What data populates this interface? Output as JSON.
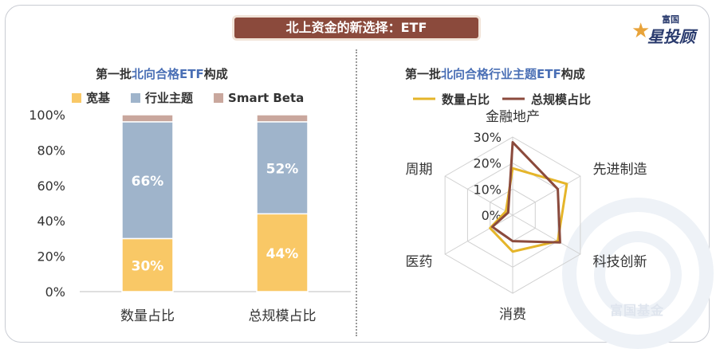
{
  "banner": {
    "title": "北上资金的新选择：ETF"
  },
  "logo": {
    "top": "富国",
    "main": "星投顾",
    "watermark": "富国基金"
  },
  "left": {
    "subtitle_prefix": "第一批",
    "subtitle_highlight": "北向合格ETF",
    "subtitle_suffix": "构成"
  },
  "right": {
    "subtitle_prefix": "第一批",
    "subtitle_highlight": "北向合格行业主题ETF",
    "subtitle_suffix": "构成"
  },
  "chart_data": [
    {
      "type": "bar",
      "stacked": true,
      "title": "第一批北向合格ETF构成",
      "categories": [
        "数量占比",
        "总规模占比"
      ],
      "series": [
        {
          "name": "宽基",
          "color": "#f9c866",
          "values": [
            30,
            44
          ],
          "labels": [
            "30%",
            "44%"
          ]
        },
        {
          "name": "行业主题",
          "color": "#9fb4cb",
          "values": [
            66,
            52
          ],
          "labels": [
            "66%",
            "52%"
          ]
        },
        {
          "name": "Smart Beta",
          "color": "#c9a79d",
          "values": [
            4,
            4
          ],
          "labels": [
            "",
            ""
          ]
        }
      ],
      "yticks": [
        "0%",
        "20%",
        "40%",
        "60%",
        "80%",
        "100%"
      ],
      "ylim": [
        0,
        100
      ]
    },
    {
      "type": "radar",
      "title": "第一批北向合格行业主题ETF构成",
      "axes": [
        "金融地产",
        "先进制造",
        "科技创新",
        "消费",
        "医药",
        "周期"
      ],
      "series": [
        {
          "name": "数量占比",
          "color": "#e5b52a",
          "values": [
            18,
            24,
            20,
            14,
            10,
            3
          ]
        },
        {
          "name": "总规模占比",
          "color": "#8b4a3c",
          "values": [
            28,
            20,
            21,
            10,
            9,
            2
          ]
        }
      ],
      "rticks": [
        "0%",
        "10%",
        "20%",
        "30%"
      ],
      "rlim": [
        0,
        30
      ]
    }
  ]
}
